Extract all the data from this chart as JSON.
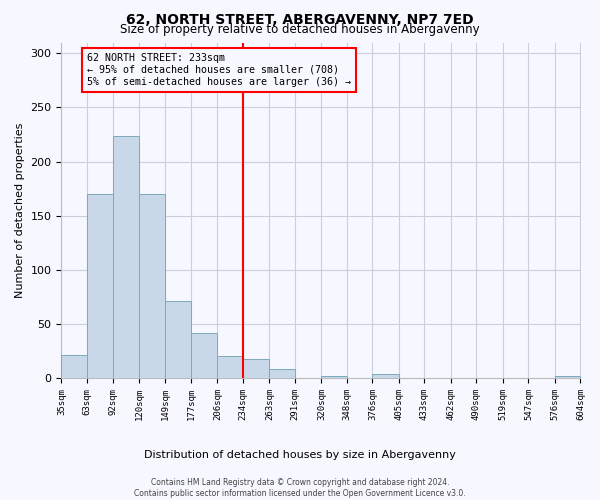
{
  "title": "62, NORTH STREET, ABERGAVENNY, NP7 7ED",
  "subtitle": "Size of property relative to detached houses in Abergavenny",
  "xlabel": "Distribution of detached houses by size in Abergavenny",
  "ylabel": "Number of detached properties",
  "bin_edges": [
    35,
    63,
    92,
    120,
    149,
    177,
    206,
    234,
    263,
    291,
    320,
    348,
    376,
    405,
    433,
    462,
    490,
    519,
    547,
    576,
    604
  ],
  "bin_heights": [
    21,
    170,
    224,
    170,
    71,
    42,
    20,
    18,
    8,
    0,
    2,
    0,
    4,
    0,
    0,
    0,
    0,
    0,
    0,
    2
  ],
  "bar_color": "#c8d8e8",
  "bar_edge_color": "#7aaabb",
  "vline_x": 234,
  "vline_color": "red",
  "annotation_title": "62 NORTH STREET: 233sqm",
  "annotation_line1": "← 95% of detached houses are smaller (708)",
  "annotation_line2": "5% of semi-detached houses are larger (36) →",
  "annotation_box_color": "red",
  "ylim": [
    0,
    310
  ],
  "yticks": [
    0,
    50,
    100,
    150,
    200,
    250,
    300
  ],
  "tick_labels": [
    "35sqm",
    "63sqm",
    "92sqm",
    "120sqm",
    "149sqm",
    "177sqm",
    "206sqm",
    "234sqm",
    "263sqm",
    "291sqm",
    "320sqm",
    "348sqm",
    "376sqm",
    "405sqm",
    "433sqm",
    "462sqm",
    "490sqm",
    "519sqm",
    "547sqm",
    "576sqm",
    "604sqm"
  ],
  "footnote1": "Contains HM Land Registry data © Crown copyright and database right 2024.",
  "footnote2": "Contains public sector information licensed under the Open Government Licence v3.0.",
  "bg_color": "#f7f7ff",
  "grid_color": "#c8d0dc",
  "title_fontsize": 10,
  "subtitle_fontsize": 8.5
}
